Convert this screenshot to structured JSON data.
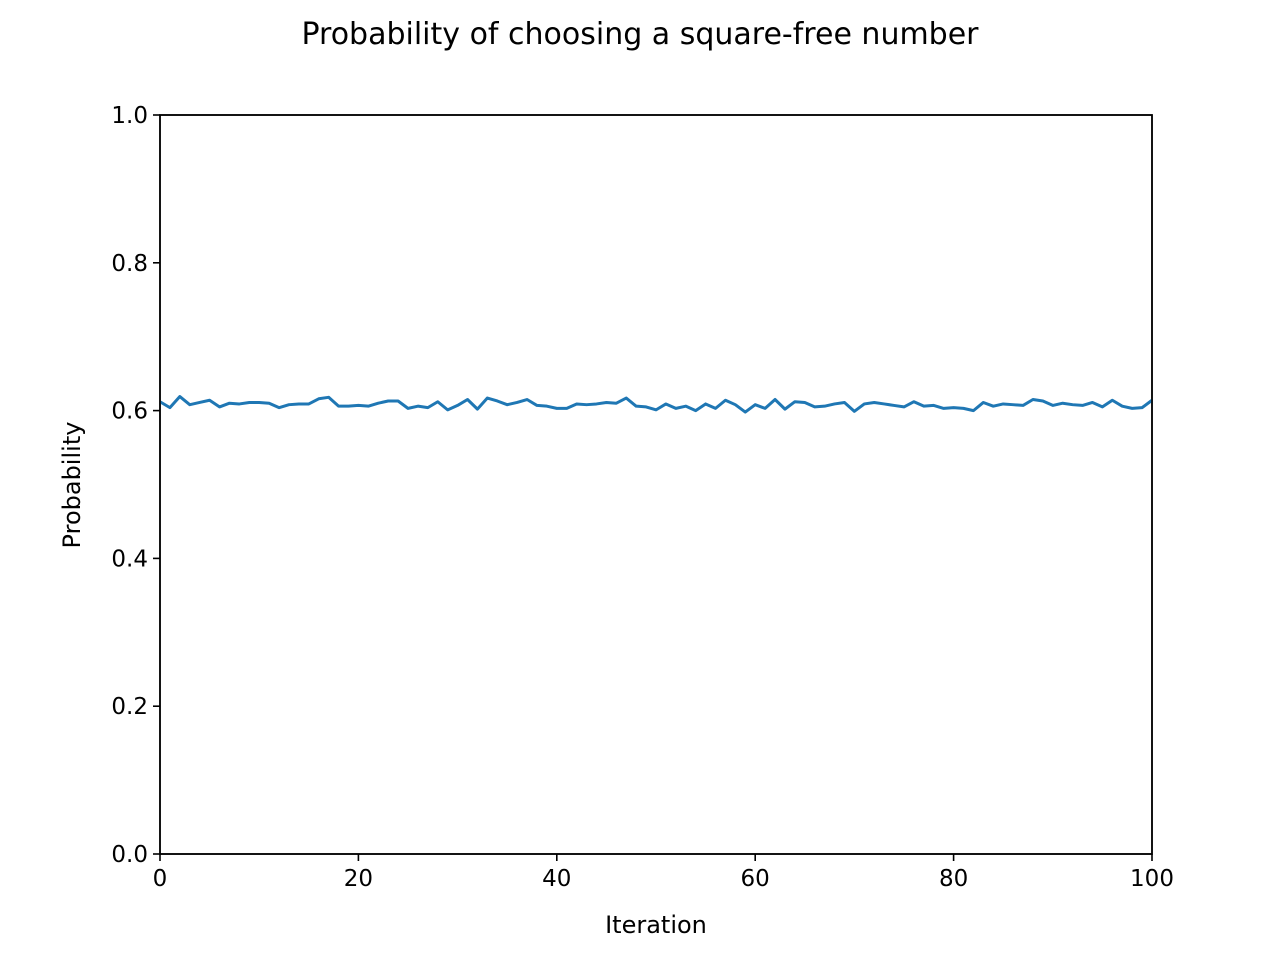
{
  "chart_data": {
    "type": "line",
    "title": "Probability of choosing a square-free number",
    "xlabel": "Iteration",
    "ylabel": "Probability",
    "xlim": [
      0,
      100
    ],
    "ylim": [
      0,
      1
    ],
    "xticks": [
      "0",
      "20",
      "40",
      "60",
      "80",
      "100"
    ],
    "yticks": [
      "0.0",
      "0.2",
      "0.4",
      "0.6",
      "0.8",
      "1.0"
    ],
    "grid": false,
    "series": [
      {
        "color": "#1f77b4",
        "x": [
          0,
          1,
          2,
          3,
          4,
          5,
          6,
          7,
          8,
          9,
          10,
          11,
          12,
          13,
          14,
          15,
          16,
          17,
          18,
          19,
          20,
          21,
          22,
          23,
          24,
          25,
          26,
          27,
          28,
          29,
          30,
          31,
          32,
          33,
          34,
          35,
          36,
          37,
          38,
          39,
          40,
          41,
          42,
          43,
          44,
          45,
          46,
          47,
          48,
          49,
          50,
          51,
          52,
          53,
          54,
          55,
          56,
          57,
          58,
          59,
          60,
          61,
          62,
          63,
          64,
          65,
          66,
          67,
          68,
          69,
          70,
          71,
          72,
          73,
          74,
          75,
          76,
          77,
          78,
          79,
          80,
          81,
          82,
          83,
          84,
          85,
          86,
          87,
          88,
          89,
          90,
          91,
          92,
          93,
          94,
          95,
          96,
          97,
          98,
          99,
          100
        ],
        "y": [
          0.612,
          0.604,
          0.619,
          0.608,
          0.611,
          0.614,
          0.605,
          0.61,
          0.609,
          0.611,
          0.611,
          0.61,
          0.604,
          0.608,
          0.609,
          0.609,
          0.616,
          0.618,
          0.606,
          0.606,
          0.607,
          0.606,
          0.61,
          0.613,
          0.613,
          0.603,
          0.606,
          0.604,
          0.612,
          0.601,
          0.607,
          0.615,
          0.602,
          0.617,
          0.613,
          0.608,
          0.611,
          0.615,
          0.607,
          0.606,
          0.603,
          0.603,
          0.609,
          0.608,
          0.609,
          0.611,
          0.61,
          0.617,
          0.606,
          0.605,
          0.601,
          0.609,
          0.603,
          0.606,
          0.6,
          0.609,
          0.603,
          0.614,
          0.608,
          0.598,
          0.608,
          0.603,
          0.615,
          0.602,
          0.612,
          0.611,
          0.605,
          0.606,
          0.609,
          0.611,
          0.599,
          0.609,
          0.611,
          0.609,
          0.607,
          0.605,
          0.612,
          0.606,
          0.607,
          0.603,
          0.604,
          0.603,
          0.6,
          0.611,
          0.606,
          0.609,
          0.608,
          0.607,
          0.615,
          0.613,
          0.607,
          0.61,
          0.608,
          0.607,
          0.611,
          0.605,
          0.614,
          0.606,
          0.603,
          0.604,
          0.614
        ]
      }
    ]
  }
}
